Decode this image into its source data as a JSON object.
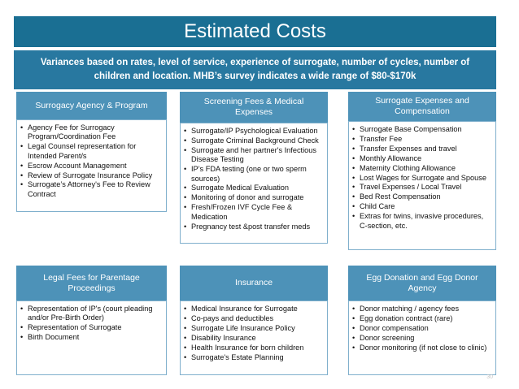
{
  "title": "Estimated Costs",
  "subtitle": "Variances based on rates, level of service, experience of surrogate, number of cycles, number of children and location. MHB’s survey indicates a wide range of $80-$170k",
  "cards": [
    {
      "heading": "Surrogacy Agency & Program",
      "items": [
        "Agency Fee for Surrogacy Program/Coordination Fee",
        "Legal Counsel representation for Intended Parent/s",
        "Escrow Account Management",
        "Review of Surrogate Insurance Policy",
        "Surrogate’s Attorney's Fee to Review Contract"
      ]
    },
    {
      "heading": "Screening Fees &  Medical Expenses",
      "items": [
        "Surrogate/IP Psychological Evaluation",
        "Surrogate Criminal Background Check",
        "Surrogate and her partner's Infectious Disease Testing",
        "IP’s FDA testing (one or two sperm sources)",
        "Surrogate Medical Evaluation",
        "Monitoring of donor and surrogate",
        "Fresh/Frozen IVF Cycle Fee & Medication",
        "Pregnancy test &post transfer meds"
      ]
    },
    {
      "heading": "Surrogate Expenses and Compensation",
      "items": [
        "Surrogate Base Compensation",
        "Transfer Fee",
        "Transfer Expenses and travel",
        "Monthly Allowance",
        "Maternity Clothing Allowance",
        "Lost Wages for Surrogate and Spouse",
        "Travel Expenses / Local Travel",
        "Bed Rest Compensation",
        "Child Care",
        "Extras for twins, invasive procedures, C-section, etc."
      ]
    },
    {
      "heading": "Legal Fees for  Parentage Proceedings",
      "items": [
        "Representation of IP's  (court pleading and/or Pre-Birth Order)",
        "Representation of Surrogate",
        "Birth Document"
      ]
    },
    {
      "heading": "Insurance",
      "items": [
        "Medical Insurance for Surrogate",
        "Co-pays and deductibles",
        "Surrogate Life Insurance Policy",
        "Disability Insurance",
        "Health Insurance for born children",
        "Surrogate's Estate Planning"
      ]
    },
    {
      "heading": "Egg Donation and Egg Donor Agency",
      "items": [
        "Donor matching / agency fees",
        "Egg donation contract (rare)",
        "Donor compensation",
        "Donor screening",
        "Donor monitoring (if not close to clinic)"
      ]
    }
  ],
  "page_number": "30"
}
